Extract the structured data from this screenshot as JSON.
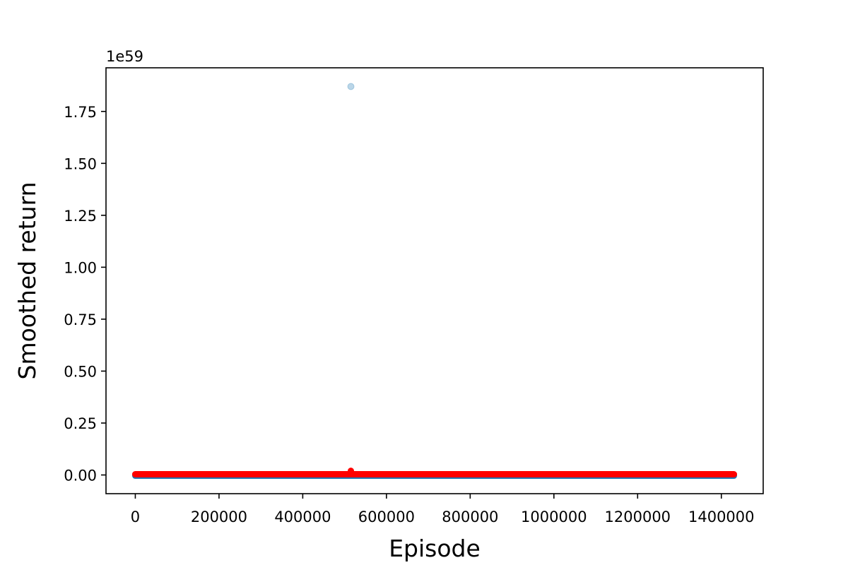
{
  "chart_data": {
    "type": "scatter",
    "title": "",
    "xlabel": "Episode",
    "ylabel": "Smoothed return",
    "y_offset_text": "1e59",
    "xlim": [
      -70000,
      1500000
    ],
    "ylim": [
      -0.09,
      1.96
    ],
    "y_scale_factor": "1e59",
    "x_ticks": [
      0,
      200000,
      400000,
      600000,
      800000,
      1000000,
      1200000,
      1400000
    ],
    "x_tick_labels": [
      "0",
      "200000",
      "400000",
      "600000",
      "800000",
      "1000000",
      "1200000",
      "1400000"
    ],
    "y_ticks": [
      0.0,
      0.25,
      0.5,
      0.75,
      1.0,
      1.25,
      1.5,
      1.75
    ],
    "y_tick_labels": [
      "0.00",
      "0.25",
      "0.50",
      "0.75",
      "1.00",
      "1.25",
      "1.50",
      "1.75"
    ],
    "x_range_data": [
      0,
      1430000
    ],
    "grid": false,
    "series": [
      {
        "marker": "circle",
        "color": "#1f77b4",
        "alpha": "faint",
        "baseline_value": 0,
        "points": [
          {
            "x": 515000,
            "y": 1.87
          }
        ]
      },
      {
        "marker": "circle",
        "color": "#ff0000",
        "baseline_value": 0,
        "points": [
          {
            "x": 515000,
            "y": 0.02
          }
        ]
      }
    ]
  }
}
